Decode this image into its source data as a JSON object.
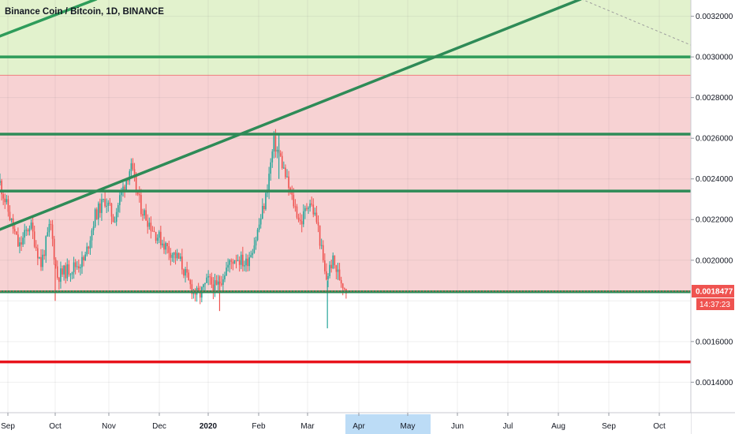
{
  "chart_data": {
    "type": "candlestick",
    "title": "Binance Coin / Bitcoin, 1D, BINANCE",
    "x_ticks": [
      "Sep",
      "Oct",
      "Nov",
      "Dec",
      "2020",
      "Feb",
      "Mar",
      "Apr",
      "May",
      "Jun",
      "Jul",
      "Aug",
      "Sep",
      "Oct"
    ],
    "highlighted_x_tick": "Apr",
    "y_ticks": [
      "0.0032000",
      "0.0030000",
      "0.0028000",
      "0.0026000",
      "0.0024000",
      "0.0022000",
      "0.0020000",
      "0.0016000",
      "0.0014000"
    ],
    "ylim": [
      0.00125,
      0.00328
    ],
    "last_price": "0.0018477",
    "countdown": "14:37:23",
    "zones": [
      {
        "name": "supply-zone-green",
        "from": 0.00291,
        "to": 0.00328,
        "color": "#e2f2cd"
      },
      {
        "name": "range-zone-red",
        "from": 0.001845,
        "to": 0.00291,
        "color": "#f7d2d3"
      }
    ],
    "horizontal_levels": [
      {
        "value": 0.003,
        "color": "#2e9c5a"
      },
      {
        "value": 0.00262,
        "color": "#2e8b57"
      },
      {
        "value": 0.00234,
        "color": "#2e8b57"
      },
      {
        "value": 0.001845,
        "color": "#2e8b57"
      },
      {
        "value": 0.0015,
        "color": "#e8131b"
      }
    ],
    "trendlines": [
      {
        "color": "#2e9c5a",
        "from": {
          "date": "2019-08-01",
          "value": 0.003025
        },
        "to": {
          "date": "2019-10-25",
          "value": 0.003285
        }
      },
      {
        "color": "#2e8b57",
        "from": {
          "date": "2019-08-20",
          "value": 0.00213
        },
        "to": {
          "date": "2020-08-15",
          "value": 0.003285
        }
      },
      {
        "color": "#9e9e9e",
        "style": "dashed",
        "from": {
          "date": "2020-08-15",
          "value": 0.003285
        },
        "to": {
          "date": "2020-10-25",
          "value": 0.00304
        }
      }
    ],
    "price_path": [
      {
        "date": "2019-08-27",
        "value": 0.00238
      },
      {
        "date": "2019-09-08",
        "value": 0.00206
      },
      {
        "date": "2019-09-15",
        "value": 0.00218
      },
      {
        "date": "2019-09-22",
        "value": 0.00198
      },
      {
        "date": "2019-09-28",
        "value": 0.00218
      },
      {
        "date": "2019-10-02",
        "value": 0.00192
      },
      {
        "date": "2019-10-10",
        "value": 0.00196
      },
      {
        "date": "2019-10-18",
        "value": 0.002
      },
      {
        "date": "2019-10-24",
        "value": 0.00222
      },
      {
        "date": "2019-10-30",
        "value": 0.0023
      },
      {
        "date": "2019-11-04",
        "value": 0.0022
      },
      {
        "date": "2019-11-08",
        "value": 0.00232
      },
      {
        "date": "2019-11-14",
        "value": 0.00246
      },
      {
        "date": "2019-11-20",
        "value": 0.00226
      },
      {
        "date": "2019-11-28",
        "value": 0.00214
      },
      {
        "date": "2019-12-06",
        "value": 0.00206
      },
      {
        "date": "2019-12-14",
        "value": 0.002
      },
      {
        "date": "2019-12-20",
        "value": 0.00188
      },
      {
        "date": "2019-12-26",
        "value": 0.00182
      },
      {
        "date": "2020-01-01",
        "value": 0.0019
      },
      {
        "date": "2020-01-06",
        "value": 0.00186
      },
      {
        "date": "2020-01-12",
        "value": 0.00196
      },
      {
        "date": "2020-01-18",
        "value": 0.00202
      },
      {
        "date": "2020-01-24",
        "value": 0.00198
      },
      {
        "date": "2020-01-30",
        "value": 0.0021
      },
      {
        "date": "2020-02-05",
        "value": 0.0023
      },
      {
        "date": "2020-02-10",
        "value": 0.00258
      },
      {
        "date": "2020-02-14",
        "value": 0.0025
      },
      {
        "date": "2020-02-20",
        "value": 0.00232
      },
      {
        "date": "2020-02-26",
        "value": 0.00218
      },
      {
        "date": "2020-03-02",
        "value": 0.0023
      },
      {
        "date": "2020-03-07",
        "value": 0.00218
      },
      {
        "date": "2020-03-12",
        "value": 0.0019
      },
      {
        "date": "2020-03-16",
        "value": 0.002
      },
      {
        "date": "2020-03-20",
        "value": 0.00192
      },
      {
        "date": "2020-03-25",
        "value": 0.001848
      }
    ]
  }
}
